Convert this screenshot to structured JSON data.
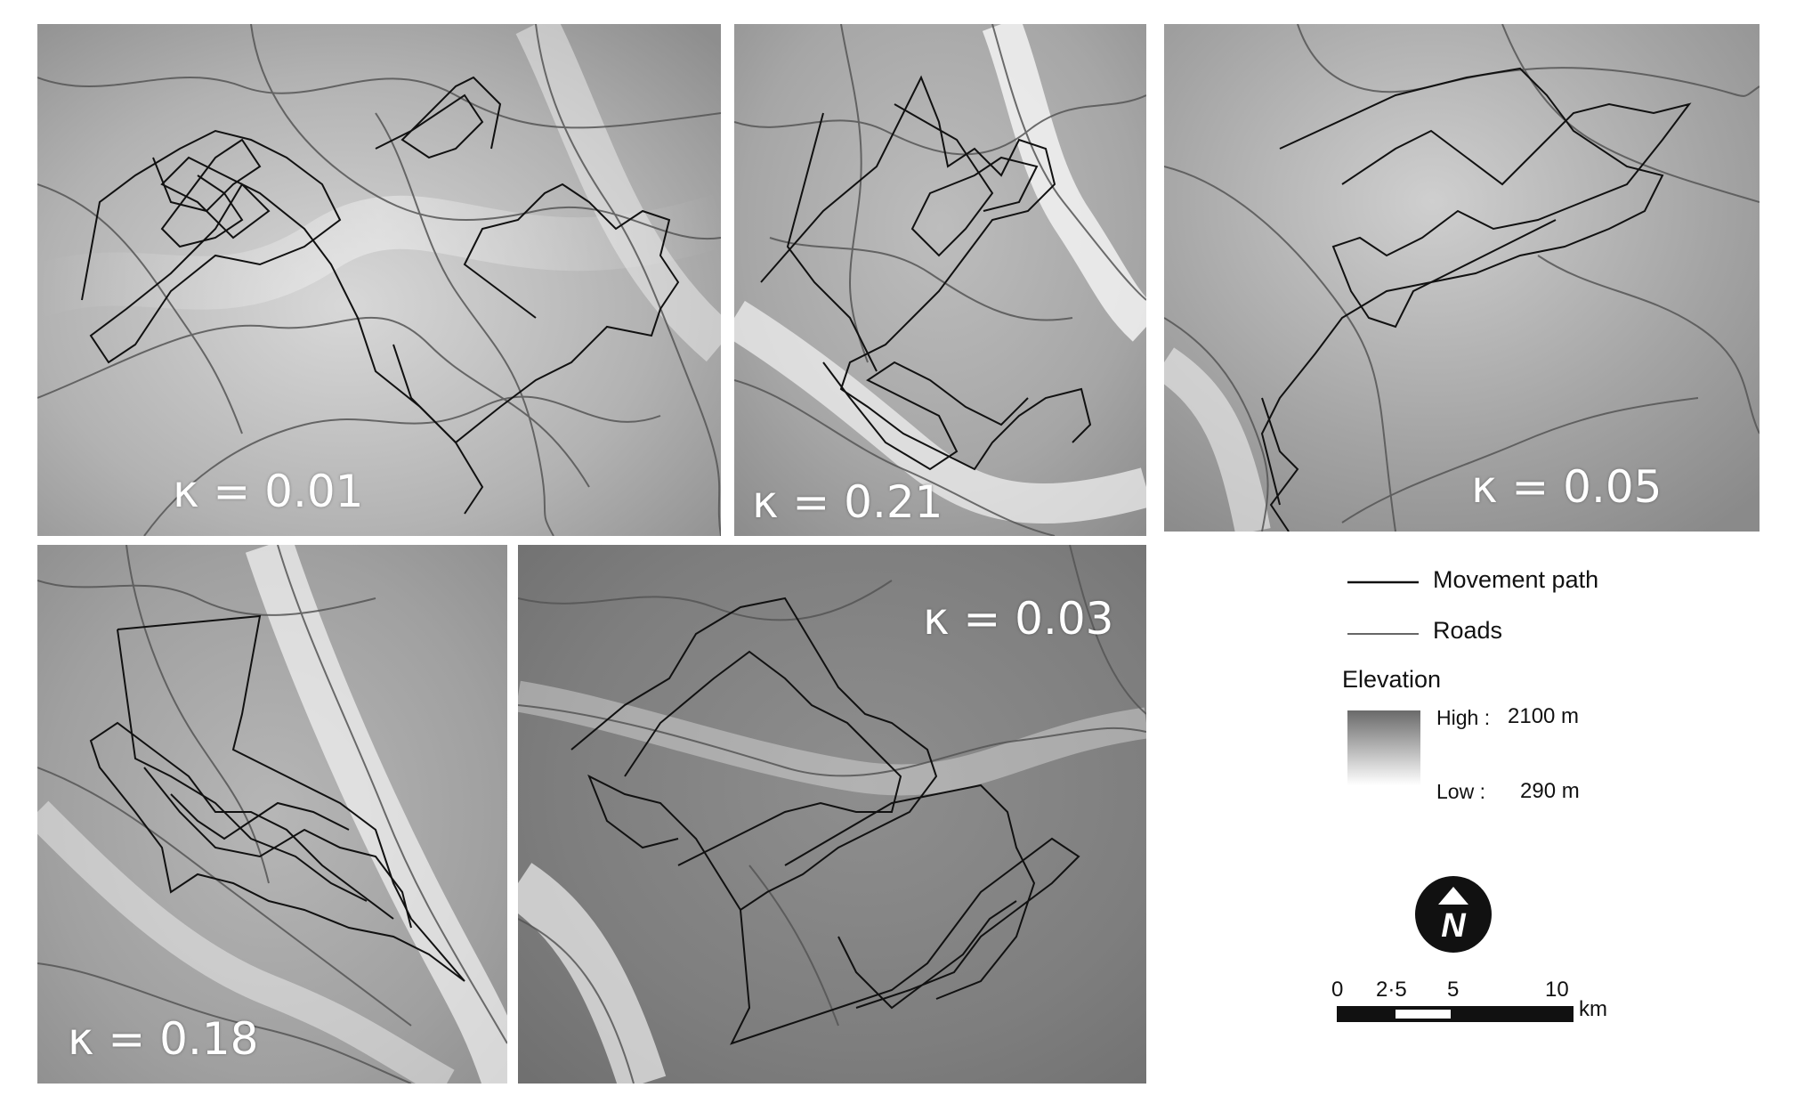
{
  "panels": [
    {
      "kappa": "κ = 0.01"
    },
    {
      "kappa": "κ = 0.21"
    },
    {
      "kappa": "κ = 0.05"
    },
    {
      "kappa": "κ = 0.18"
    },
    {
      "kappa": "κ = 0.03"
    }
  ],
  "legend": {
    "movement_path": "Movement path",
    "roads": "Roads",
    "elevation_title": "Elevation",
    "high_label": "High :",
    "high_value": "2100 m",
    "low_label": "Low :",
    "low_value": "290 m",
    "north_letter": "N",
    "scale_ticks": [
      "0",
      "2·5",
      "5",
      "10"
    ],
    "scale_unit": "km"
  },
  "colors": {
    "movement_path": "#111111",
    "roads": "#555555",
    "elevation_high": "#6a6a6a",
    "elevation_low": "#ffffff"
  }
}
